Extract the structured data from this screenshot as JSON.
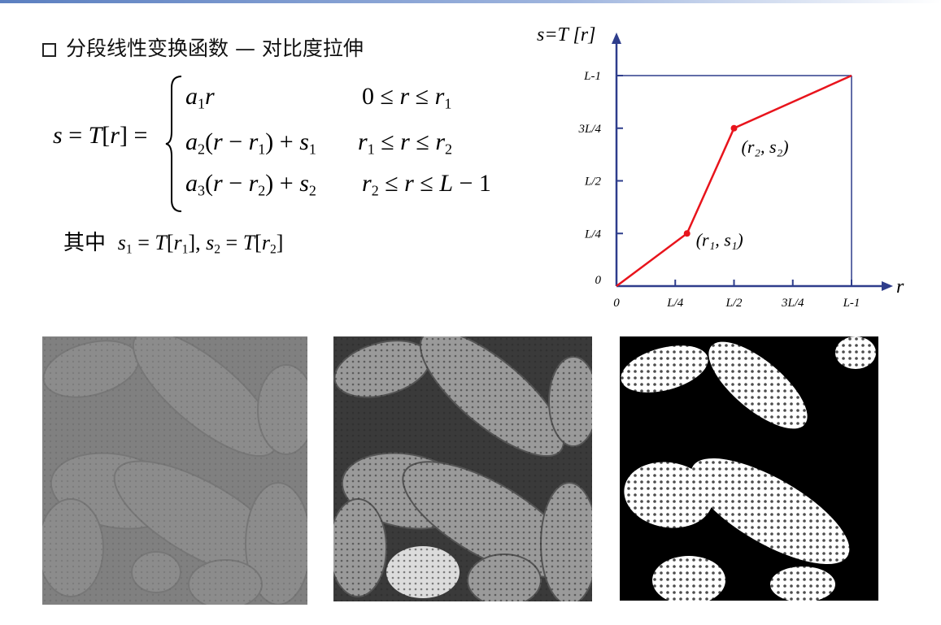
{
  "title": "分段线性变换函数 — 对比度拉伸",
  "formula": {
    "lhs": "s = T[r] =",
    "cases": [
      {
        "expr": "a₁r",
        "cond": "0 ≤ r ≤ r₁"
      },
      {
        "expr": "a₂(r − r₁) + s₁",
        "cond": "r₁ ≤ r ≤ r₂"
      },
      {
        "expr": "a₃(r − r₂) + s₂",
        "cond": "r₂ ≤ r ≤ L − 1"
      }
    ],
    "where_label": "其中",
    "where_expr": "s₁ = T[r₁], s₂ = T[r₂]"
  },
  "chart_data": {
    "type": "line",
    "ylabel": "s=T [r]",
    "xlabel": "r",
    "x_ticks": [
      "0",
      "L/4",
      "L/2",
      "3L/4",
      "L-1"
    ],
    "y_ticks": [
      "0",
      "L/4",
      "L/2",
      "3L/4",
      "L-1"
    ],
    "xlim": [
      0,
      1
    ],
    "ylim": [
      0,
      1
    ],
    "series": [
      {
        "points": [
          [
            0,
            0
          ],
          [
            0.3,
            0.25
          ],
          [
            0.5,
            0.75
          ],
          [
            1,
            1
          ]
        ]
      }
    ],
    "point_labels": [
      "(r₁, s₁)",
      "(r₂, s₂)"
    ],
    "line_color": "#e8141c",
    "axis_color": "#2e3d8c"
  },
  "images": [
    {
      "name": "low-contrast pollen"
    },
    {
      "name": "contrast-stretched pollen"
    },
    {
      "name": "thresholded pollen"
    }
  ]
}
